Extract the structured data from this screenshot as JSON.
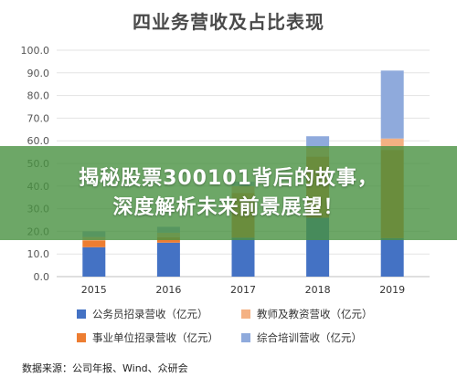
{
  "chart_data": {
    "type": "bar",
    "stacked": true,
    "title": "四业务营收及占比表现",
    "categories": [
      "2015",
      "2016",
      "2017",
      "2018",
      "2019"
    ],
    "series": [
      {
        "name": "公务员招录营收（亿元）",
        "color": "#4472C4",
        "values": [
          13.0,
          15.0,
          17.2,
          26.0,
          17.0
        ]
      },
      {
        "name": "事业单位招录营收（亿元）",
        "color": "#ED7D31",
        "values": [
          3.0,
          2.4,
          19.8,
          27.0,
          39.0
        ]
      },
      {
        "name": "教师及教资营收（亿元）",
        "color": "#F4B183",
        "values": [
          1.5,
          2.0,
          3.0,
          4.0,
          5.0
        ]
      },
      {
        "name": "综合培训营收（亿元）",
        "color": "#8FAADC",
        "values": [
          2.5,
          2.6,
          2.0,
          5.0,
          30.0
        ]
      }
    ],
    "ylim": [
      0,
      100
    ],
    "yticks": [
      "0.0",
      "10.0",
      "20.0",
      "30.0",
      "40.0",
      "50.0",
      "60.0",
      "70.0",
      "80.0",
      "90.0",
      "100.0"
    ],
    "grid": true,
    "legend_position": "bottom"
  },
  "source_text": "数据来源：公司年报、Wind、众研会",
  "banner": {
    "line1": "揭秘股票300101背后的故事，",
    "line2": "深度解析未来前景展望！"
  }
}
